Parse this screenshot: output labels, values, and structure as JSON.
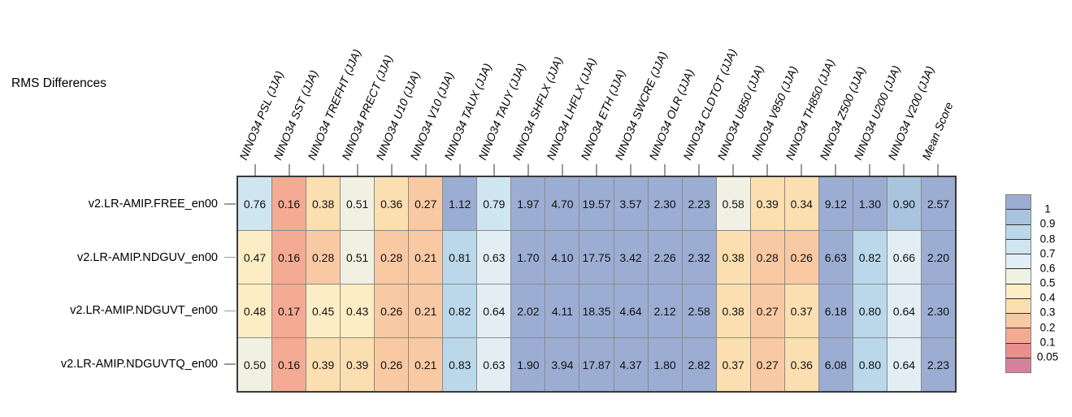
{
  "title": "RMS Differences",
  "chart_data": {
    "type": "heatmap",
    "title": "RMS Differences",
    "season": "JJA",
    "columns": [
      "NINO34 PSL (JJA)",
      "NINO34 SST (JJA)",
      "NINO34 TREFHT (JJA)",
      "NINO34 PRECT (JJA)",
      "NINO34 U10 (JJA)",
      "NINO34 V10 (JJA)",
      "NINO34 TAUX (JJA)",
      "NINO34 TAUY (JJA)",
      "NINO34 SHFLX (JJA)",
      "NINO34 LHFLX (JJA)",
      "NINO34 ETH (JJA)",
      "NINO34 SWCRE (JJA)",
      "NINO34 OLR (JJA)",
      "NINO34 CLDTOT (JJA)",
      "NINO34 U850 (JJA)",
      "NINO34 V850 (JJA)",
      "NINO34 TH850 (JJA)",
      "NINO34 Z500 (JJA)",
      "NINO34 U200 (JJA)",
      "NINO34 V200 (JJA)",
      "Mean Score"
    ],
    "rows": [
      "v2.LR-AMIP.FREE_en00",
      "v2.LR-AMIP.NDGUV_en00",
      "v2.LR-AMIP.NDGUVT_en00",
      "v2.LR-AMIP.NDGUVTQ_en00"
    ],
    "values": [
      [
        0.76,
        0.16,
        0.38,
        0.51,
        0.36,
        0.27,
        1.12,
        0.79,
        1.97,
        4.7,
        19.57,
        3.57,
        2.3,
        2.23,
        0.58,
        0.39,
        0.34,
        9.12,
        1.3,
        0.9,
        2.57
      ],
      [
        0.47,
        0.16,
        0.28,
        0.51,
        0.28,
        0.21,
        0.81,
        0.63,
        1.7,
        4.1,
        17.75,
        3.42,
        2.26,
        2.32,
        0.38,
        0.28,
        0.26,
        6.63,
        0.82,
        0.66,
        2.2
      ],
      [
        0.48,
        0.17,
        0.45,
        0.43,
        0.26,
        0.21,
        0.82,
        0.64,
        2.02,
        4.11,
        18.35,
        4.64,
        2.12,
        2.58,
        0.38,
        0.27,
        0.37,
        6.18,
        0.8,
        0.64,
        2.3
      ],
      [
        0.5,
        0.16,
        0.39,
        0.39,
        0.26,
        0.21,
        0.83,
        0.63,
        1.9,
        3.94,
        17.87,
        4.37,
        1.8,
        2.82,
        0.37,
        0.27,
        0.36,
        6.08,
        0.8,
        0.64,
        2.23
      ]
    ],
    "value_format": "2-decimals",
    "grid_lines": true,
    "legend_position": "right",
    "colorbar": {
      "tick_labels": [
        "1",
        "0.9",
        "0.8",
        "0.7",
        "0.6",
        "0.5",
        "0.4",
        "0.3",
        "0.2",
        "0.1",
        "0.05"
      ],
      "bin_lower_edges": [
        1,
        0.9,
        0.8,
        0.7,
        0.6,
        0.5,
        0.4,
        0.3,
        0.2,
        0.1,
        0.05
      ],
      "segment_colors": [
        "#9badd3",
        "#a9c4de",
        "#bad8ea",
        "#cfe5f0",
        "#e2eef4",
        "#f0f1e2",
        "#fdedc4",
        "#fcdfb1",
        "#f9c9a3",
        "#f4aa93",
        "#eb8f8d",
        "#d5829c"
      ]
    },
    "line_colors": {
      "cell_grid": "#8a8a8a",
      "outer_border": "#3a3a3a",
      "tick": "#9a9a9a"
    }
  }
}
